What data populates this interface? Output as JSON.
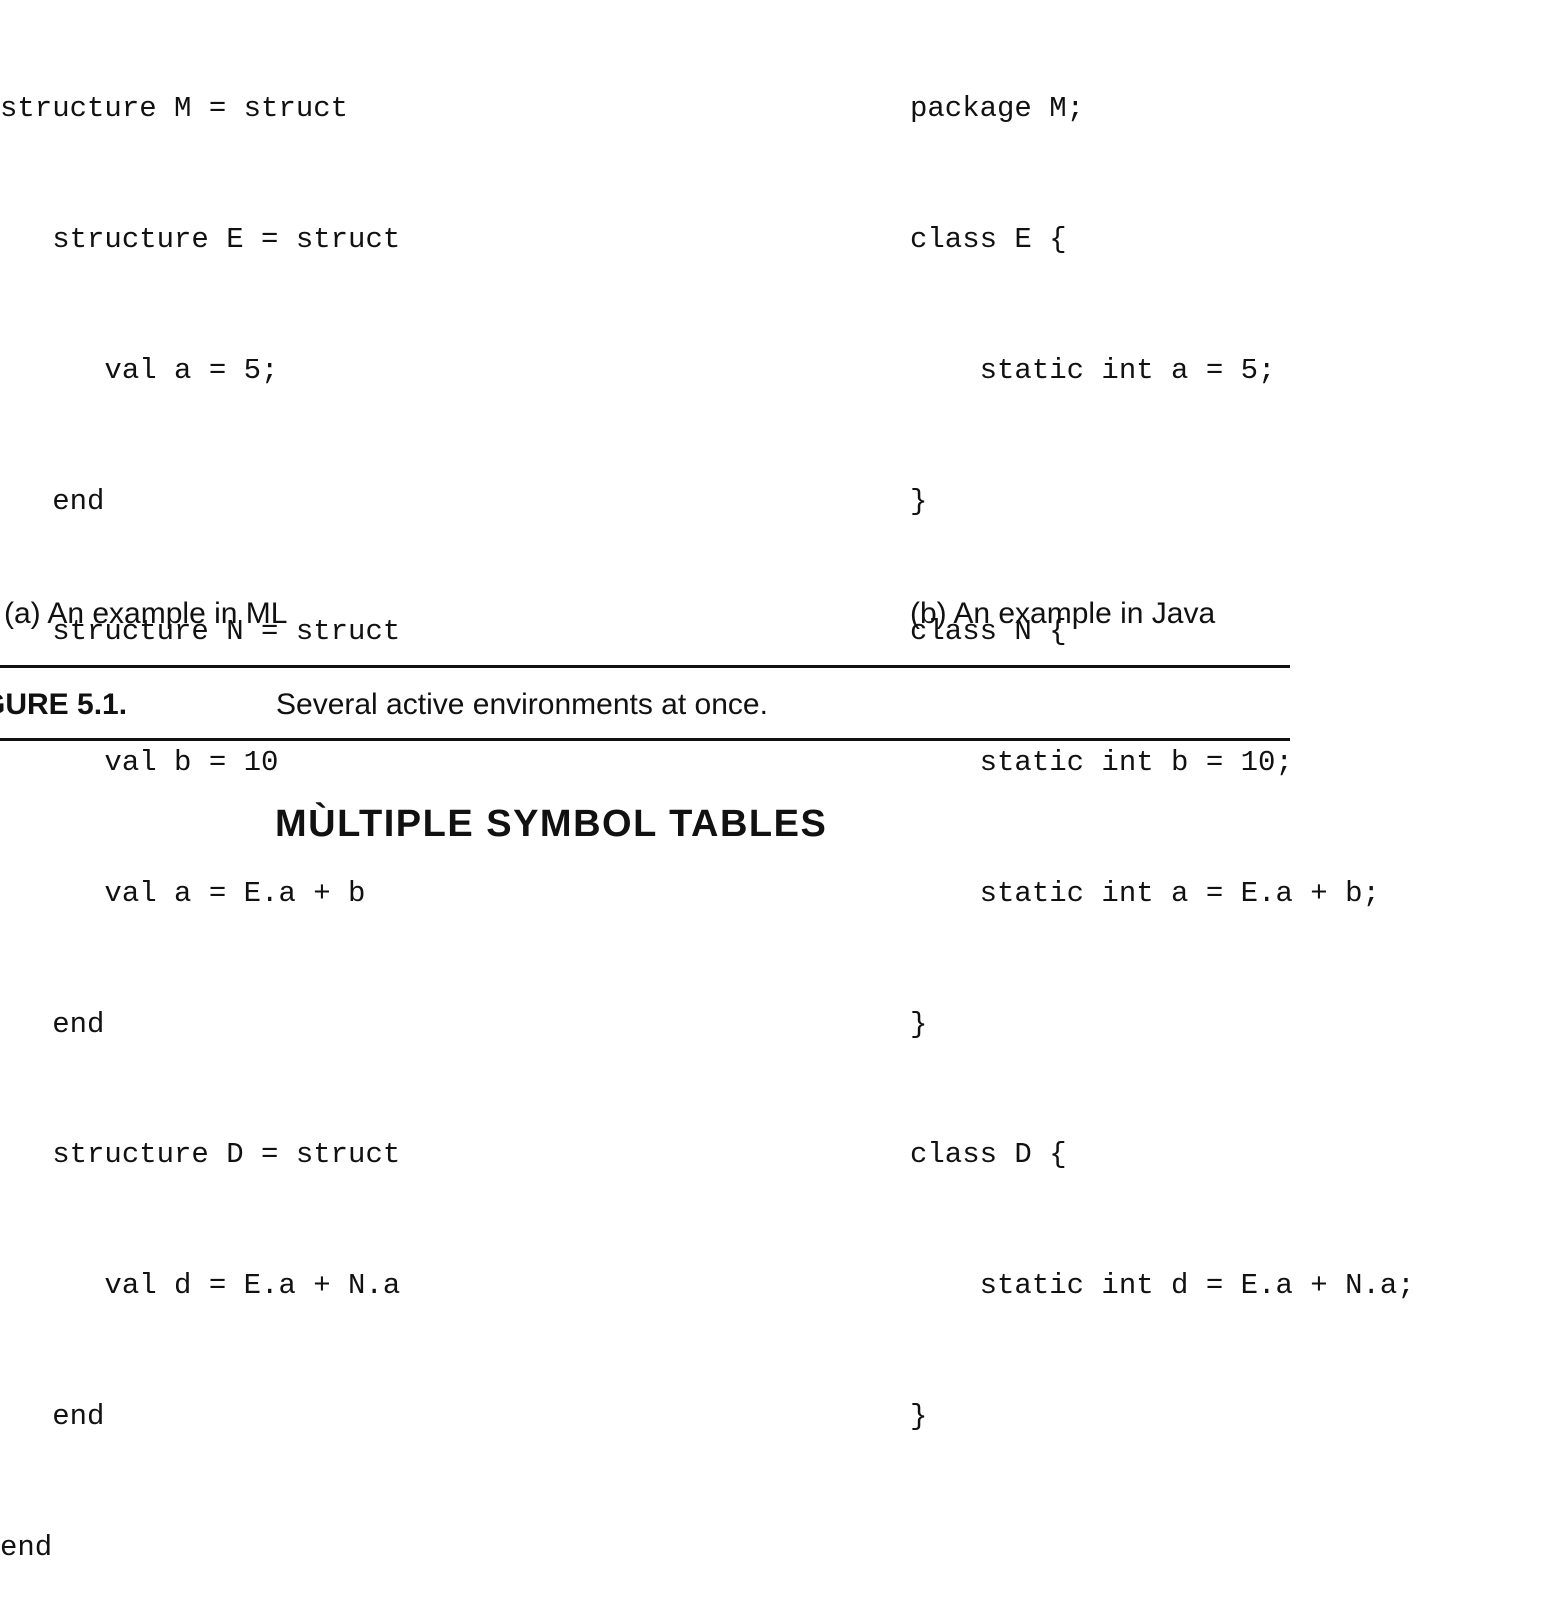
{
  "ml_example": {
    "lines": [
      "structure M = struct",
      "   structure E = struct",
      "      val a = 5;",
      "   end",
      "   structure N = struct",
      "      val b = 10",
      "      val a = E.a + b",
      "   end",
      "   structure D = struct",
      "      val d = E.a + N.a",
      "   end",
      "end"
    ],
    "caption": "(a) An example in ML"
  },
  "java_example": {
    "lines": [
      "package M;",
      "class E {",
      "    static int a = 5;",
      "}",
      "class N {",
      "    static int b = 10;",
      "    static int a = E.a + b;",
      "}",
      "class D {",
      "    static int d = E.a + N.a;",
      "}"
    ],
    "caption": "(b) An example in Java"
  },
  "figure": {
    "label": "GURE 5.1.",
    "caption": "Several active environments at once."
  },
  "section": {
    "heading": "MÙLTIPLE SYMBOL TABLES"
  }
}
